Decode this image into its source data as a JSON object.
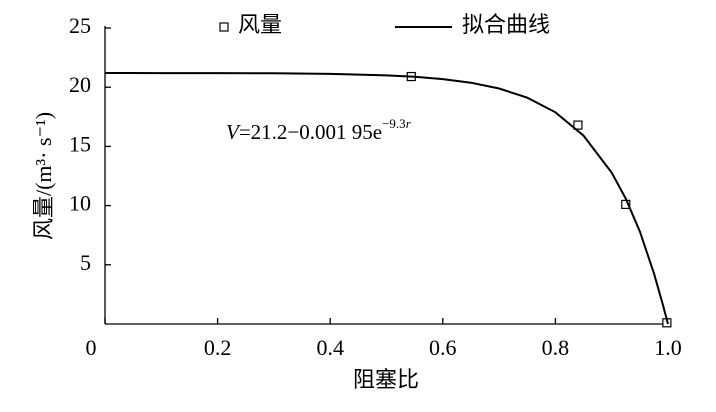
{
  "chart_data": {
    "type": "scatter-fit",
    "x_label": "阻塞比",
    "y_label": "风量/(m³· s⁻¹)",
    "xlim": [
      0,
      1
    ],
    "ylim": [
      0,
      25
    ],
    "xticks": [
      0,
      0.2,
      0.4,
      0.6,
      0.8,
      {
        "value": 1,
        "label": "1.0"
      }
    ],
    "yticks": [
      5,
      10,
      15,
      20,
      25
    ],
    "series": [
      {
        "name": "风量",
        "kind": "points",
        "color": "#000000",
        "x": [
          0.544,
          0.84,
          0.925,
          0.998
        ],
        "values": [
          20.9,
          16.8,
          10.1,
          0.1
        ]
      },
      {
        "name": "拟合曲线",
        "kind": "line",
        "color": "#000000",
        "x": [
          0,
          0.1,
          0.2,
          0.3,
          0.4,
          0.5,
          0.55,
          0.6,
          0.65,
          0.7,
          0.75,
          0.8,
          0.85,
          0.9,
          0.925,
          0.95,
          0.975,
          0.99,
          1.0
        ],
        "values": [
          21.2,
          21.19,
          21.19,
          21.17,
          21.12,
          21.0,
          20.88,
          20.68,
          20.38,
          19.89,
          19.11,
          17.88,
          15.91,
          12.78,
          10.58,
          7.8,
          4.29,
          1.77,
          0
        ]
      }
    ],
    "annotation": [
      {
        "text": "V",
        "italic": true
      },
      {
        "text": "=21.2−0.001 95e"
      },
      {
        "text": "−9.3",
        "sup": true
      },
      {
        "text": "r",
        "sup": true,
        "italic": true
      }
    ]
  }
}
